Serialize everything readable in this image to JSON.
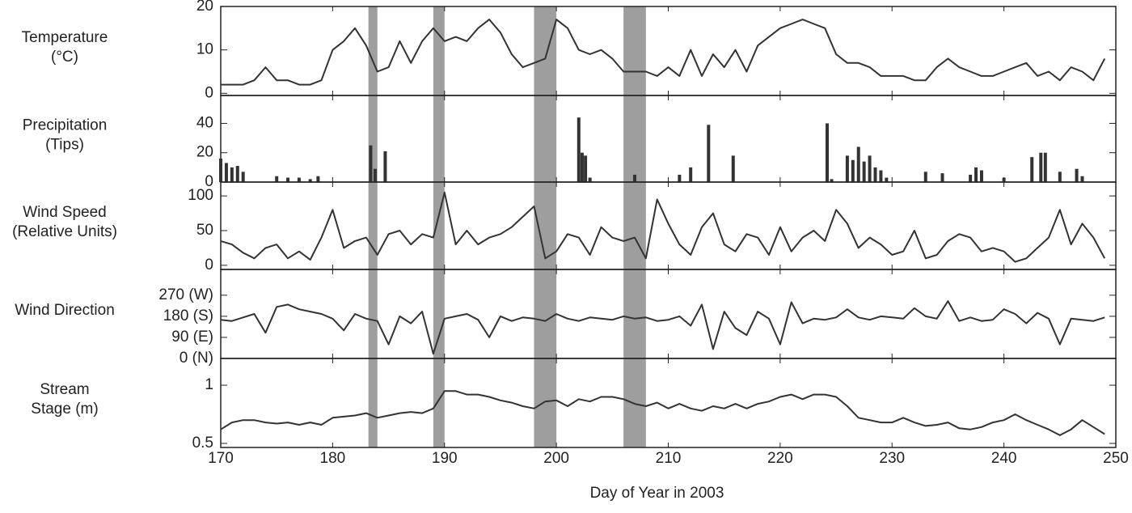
{
  "shaded_days": [
    [
      183.2,
      184.0
    ],
    [
      189.0,
      190.0
    ],
    [
      198.0,
      200.0
    ],
    [
      206.0,
      208.0
    ]
  ],
  "chart_data": [
    {
      "type": "line",
      "ylabel": [
        "Temperature",
        "(°C)"
      ],
      "ylim": [
        -0.5,
        20
      ],
      "yticks": [
        0,
        10,
        20
      ],
      "x": [
        170,
        171,
        172,
        173,
        174,
        175,
        176,
        177,
        178,
        179,
        180,
        181,
        182,
        183,
        184,
        185,
        186,
        187,
        188,
        189,
        190,
        191,
        192,
        193,
        194,
        195,
        196,
        197,
        198,
        199,
        200,
        201,
        202,
        203,
        204,
        205,
        206,
        207,
        208,
        209,
        210,
        211,
        212,
        213,
        214,
        215,
        216,
        217,
        218,
        219,
        220,
        221,
        222,
        223,
        224,
        225,
        226,
        227,
        228,
        229,
        230,
        231,
        232,
        233,
        234,
        235,
        236,
        237,
        238,
        239,
        240,
        241,
        242,
        243,
        244,
        245,
        246,
        247,
        248,
        249
      ],
      "series": [
        {
          "name": "Temperature",
          "color": "#333333",
          "values": [
            2,
            2,
            2,
            3,
            6,
            3,
            3,
            2,
            2,
            3,
            10,
            12,
            15,
            11,
            5,
            6,
            12,
            7,
            12,
            15,
            12,
            13,
            12,
            15,
            17,
            14,
            9,
            6,
            7,
            8,
            17,
            15,
            10,
            9,
            10,
            8,
            5,
            5,
            5,
            4,
            6,
            4,
            10,
            4,
            9,
            6,
            10,
            5,
            11,
            13,
            15,
            16,
            17,
            16,
            15,
            9,
            7,
            7,
            6,
            4,
            4,
            4,
            3,
            3,
            6,
            8,
            6,
            5,
            4,
            4,
            5,
            6,
            7,
            4,
            5,
            3,
            6,
            5,
            3,
            8
          ]
        }
      ]
    },
    {
      "type": "bar",
      "ylabel": [
        "Precipitation",
        "(Tips)"
      ],
      "ylim": [
        0,
        59
      ],
      "yticks": [
        0,
        20,
        40
      ],
      "x": [
        170,
        170.5,
        171,
        171.5,
        172,
        175,
        176,
        177,
        178,
        178.7,
        183.4,
        183.8,
        184.7,
        202,
        202.3,
        202.6,
        203,
        207,
        211,
        212,
        213.6,
        215.8,
        224.2,
        224.6,
        226,
        226.5,
        227,
        227.5,
        228,
        228.5,
        229,
        229.5,
        233,
        234.5,
        237,
        237.5,
        238,
        240,
        242.5,
        243.3,
        243.7,
        245,
        246.5,
        247
      ],
      "series": [
        {
          "name": "Precipitation",
          "color": "#333333",
          "values": [
            16,
            13,
            10,
            11,
            7,
            4,
            3,
            3,
            2,
            4,
            25,
            9,
            21,
            44,
            20,
            18,
            3,
            5,
            5,
            10,
            39,
            18,
            40,
            2,
            18,
            15,
            24,
            14,
            18,
            10,
            8,
            3,
            7,
            6,
            5,
            10,
            8,
            3,
            17,
            20,
            20,
            7,
            9,
            4
          ]
        }
      ]
    },
    {
      "type": "line",
      "ylabel": [
        "Wind Speed",
        "(Relative Units)"
      ],
      "ylim": [
        -6,
        120
      ],
      "yticks": [
        0,
        50,
        100
      ],
      "x": [
        170,
        171,
        172,
        173,
        174,
        175,
        176,
        177,
        178,
        179,
        180,
        181,
        182,
        183,
        184,
        185,
        186,
        187,
        188,
        189,
        190,
        191,
        192,
        193,
        194,
        195,
        196,
        197,
        198,
        199,
        200,
        201,
        202,
        203,
        204,
        205,
        206,
        207,
        208,
        209,
        210,
        211,
        212,
        213,
        214,
        215,
        216,
        217,
        218,
        219,
        220,
        221,
        222,
        223,
        224,
        225,
        226,
        227,
        228,
        229,
        230,
        231,
        232,
        233,
        234,
        235,
        236,
        237,
        238,
        239,
        240,
        241,
        242,
        243,
        244,
        245,
        246,
        247,
        248,
        249
      ],
      "series": [
        {
          "name": "Wind Speed",
          "color": "#333333",
          "values": [
            35,
            30,
            18,
            10,
            25,
            30,
            10,
            20,
            8,
            40,
            80,
            25,
            35,
            40,
            15,
            45,
            50,
            30,
            45,
            40,
            105,
            30,
            50,
            30,
            40,
            45,
            55,
            70,
            85,
            10,
            20,
            45,
            40,
            15,
            55,
            40,
            35,
            40,
            10,
            95,
            60,
            30,
            15,
            55,
            75,
            30,
            20,
            45,
            40,
            15,
            55,
            20,
            40,
            50,
            35,
            80,
            60,
            25,
            40,
            30,
            15,
            20,
            50,
            10,
            15,
            35,
            45,
            40,
            20,
            25,
            20,
            5,
            10,
            25,
            40,
            80,
            30,
            60,
            40,
            10
          ]
        }
      ]
    },
    {
      "type": "line",
      "ylabel": [
        "Wind Direction"
      ],
      "ylim": [
        0,
        380
      ],
      "yticks": [
        {
          "value": 0,
          "label": "0 (N)"
        },
        {
          "value": 90,
          "label": "90 (E)"
        },
        {
          "value": 180,
          "label": "180 (S)"
        },
        {
          "value": 270,
          "label": "270 (W)"
        }
      ],
      "x": [
        170,
        171,
        172,
        173,
        174,
        175,
        176,
        177,
        178,
        179,
        180,
        181,
        182,
        183,
        184,
        185,
        186,
        187,
        188,
        189,
        190,
        191,
        192,
        193,
        194,
        195,
        196,
        197,
        198,
        199,
        200,
        201,
        202,
        203,
        204,
        205,
        206,
        207,
        208,
        209,
        210,
        211,
        212,
        213,
        214,
        215,
        216,
        217,
        218,
        219,
        220,
        221,
        222,
        223,
        224,
        225,
        226,
        227,
        228,
        229,
        230,
        231,
        232,
        233,
        234,
        235,
        236,
        237,
        238,
        239,
        240,
        241,
        242,
        243,
        244,
        245,
        246,
        247,
        248,
        249
      ],
      "series": [
        {
          "name": "Wind Direction",
          "color": "#333333",
          "values": [
            165,
            160,
            175,
            190,
            110,
            220,
            230,
            210,
            200,
            190,
            170,
            120,
            190,
            170,
            160,
            60,
            180,
            150,
            200,
            20,
            170,
            180,
            190,
            165,
            90,
            180,
            160,
            175,
            170,
            160,
            190,
            170,
            160,
            175,
            170,
            165,
            180,
            170,
            175,
            160,
            165,
            180,
            140,
            230,
            40,
            200,
            130,
            100,
            200,
            170,
            60,
            240,
            150,
            170,
            165,
            175,
            210,
            175,
            165,
            180,
            175,
            170,
            215,
            180,
            170,
            245,
            160,
            175,
            160,
            165,
            210,
            190,
            150,
            195,
            170,
            60,
            170,
            165,
            160,
            175
          ]
        }
      ]
    },
    {
      "type": "line",
      "ylabel": [
        "Stream",
        "Stage (m)"
      ],
      "ylim": [
        0.465,
        1.23
      ],
      "yticks": [
        0.5,
        1
      ],
      "xlim": [
        170,
        250
      ],
      "xticks": [
        170,
        180,
        190,
        200,
        210,
        220,
        230,
        240,
        250
      ],
      "xlabel": "Day of Year in 2003",
      "x": [
        170,
        171,
        172,
        173,
        174,
        175,
        176,
        177,
        178,
        179,
        180,
        181,
        182,
        183,
        184,
        185,
        186,
        187,
        188,
        189,
        190,
        191,
        192,
        193,
        194,
        195,
        196,
        197,
        198,
        199,
        200,
        201,
        202,
        203,
        204,
        205,
        206,
        207,
        208,
        209,
        210,
        211,
        212,
        213,
        214,
        215,
        216,
        217,
        218,
        219,
        220,
        221,
        222,
        223,
        224,
        225,
        226,
        227,
        228,
        229,
        230,
        231,
        232,
        233,
        234,
        235,
        236,
        237,
        238,
        239,
        240,
        241,
        242,
        243,
        244,
        245,
        246,
        247,
        248,
        249
      ],
      "series": [
        {
          "name": "Stream Stage",
          "color": "#333333",
          "values": [
            0.62,
            0.68,
            0.7,
            0.7,
            0.68,
            0.67,
            0.68,
            0.66,
            0.68,
            0.66,
            0.72,
            0.73,
            0.74,
            0.76,
            0.72,
            0.74,
            0.76,
            0.77,
            0.76,
            0.8,
            0.95,
            0.95,
            0.92,
            0.92,
            0.9,
            0.87,
            0.85,
            0.82,
            0.8,
            0.86,
            0.87,
            0.82,
            0.88,
            0.86,
            0.9,
            0.9,
            0.88,
            0.84,
            0.82,
            0.85,
            0.8,
            0.84,
            0.8,
            0.78,
            0.82,
            0.8,
            0.84,
            0.8,
            0.84,
            0.86,
            0.9,
            0.92,
            0.88,
            0.92,
            0.92,
            0.9,
            0.82,
            0.72,
            0.7,
            0.68,
            0.68,
            0.72,
            0.68,
            0.65,
            0.66,
            0.68,
            0.63,
            0.62,
            0.64,
            0.68,
            0.7,
            0.75,
            0.7,
            0.66,
            0.62,
            0.57,
            0.62,
            0.7,
            0.64,
            0.58
          ]
        }
      ]
    }
  ]
}
